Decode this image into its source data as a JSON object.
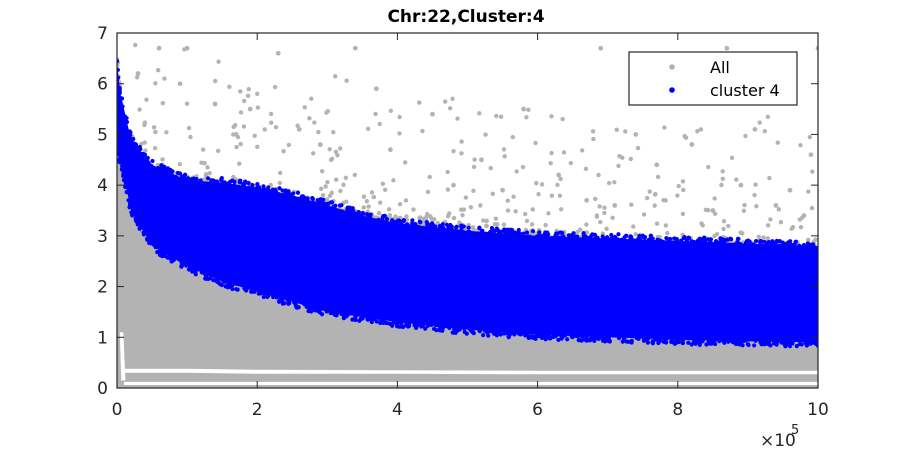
{
  "chart_data": {
    "type": "scatter",
    "title": "Chr:22,Cluster:4",
    "xlabel": "",
    "ylabel": "",
    "x_multiplier_label": "×10",
    "x_multiplier_exponent": "5",
    "xlim": [
      0,
      10
    ],
    "ylim": [
      0,
      7
    ],
    "xticks": [
      0,
      2,
      4,
      6,
      8,
      10
    ],
    "yticks": [
      0,
      1,
      2,
      3,
      4,
      5,
      6,
      7
    ],
    "grid": false,
    "legend_position": "top-right",
    "series": [
      {
        "name": "All",
        "color": "#b3b3b3",
        "description_band": {
          "x": [
            0,
            0.1,
            0.5,
            1,
            2,
            3,
            4,
            5,
            6,
            7,
            8,
            9,
            10
          ],
          "lower": [
            0.0,
            0.0,
            0.0,
            0.0,
            0.0,
            0.0,
            0.0,
            0.0,
            0.0,
            0.0,
            0.0,
            0.0,
            0.0
          ],
          "upper": [
            6.6,
            4.9,
            4.2,
            4.1,
            3.9,
            3.6,
            3.3,
            3.1,
            3.0,
            2.9,
            2.85,
            2.8,
            2.75
          ]
        },
        "outliers": [
          [
            0.6,
            6.7
          ],
          [
            1.0,
            6.7
          ],
          [
            2.3,
            6.6
          ],
          [
            3.4,
            6.7
          ],
          [
            6.9,
            6.7
          ],
          [
            8.7,
            6.7
          ],
          [
            10.0,
            6.7
          ],
          [
            0.3,
            6.2
          ],
          [
            0.9,
            6.0
          ],
          [
            1.4,
            5.6
          ],
          [
            1.9,
            5.5
          ],
          [
            2.6,
            5.1
          ],
          [
            3.7,
            5.9
          ],
          [
            4.5,
            5.4
          ],
          [
            5.8,
            5.5
          ],
          [
            7.4,
            5.0
          ],
          [
            8.2,
            4.8
          ],
          [
            9.1,
            5.1
          ],
          [
            9.9,
            4.6
          ],
          [
            3.9,
            4.7
          ],
          [
            5.2,
            4.5
          ],
          [
            6.3,
            4.2
          ],
          [
            7.7,
            4.4
          ],
          [
            8.9,
            4.0
          ],
          [
            9.6,
            3.9
          ],
          [
            4.8,
            4.0
          ],
          [
            6.7,
            3.7
          ],
          [
            9.4,
            3.6
          ],
          [
            2.9,
            4.8
          ],
          [
            1.7,
            5.0
          ],
          [
            5.5,
            3.9
          ],
          [
            7.1,
            3.6
          ],
          [
            8.5,
            3.5
          ],
          [
            9.8,
            3.4
          ]
        ]
      },
      {
        "name": "cluster 4",
        "color": "#0000ff",
        "description_band": {
          "x": [
            0,
            0.05,
            0.2,
            0.5,
            1,
            1.5,
            2,
            2.5,
            3,
            3.5,
            4,
            5,
            6,
            7,
            8,
            9,
            10
          ],
          "lower": [
            4.6,
            4.5,
            3.5,
            2.8,
            2.4,
            2.1,
            1.9,
            1.7,
            1.5,
            1.4,
            1.3,
            1.15,
            1.05,
            1.0,
            0.95,
            0.92,
            0.9
          ],
          "upper": [
            6.4,
            5.8,
            4.9,
            4.4,
            4.1,
            4.05,
            3.95,
            3.8,
            3.6,
            3.4,
            3.25,
            3.1,
            3.0,
            2.95,
            2.9,
            2.85,
            2.8
          ]
        }
      }
    ],
    "gray_gap_band": {
      "x": [
        0.1,
        1,
        2,
        4,
        6,
        8,
        10
      ],
      "low": [
        0.3,
        0.3,
        0.28,
        0.28,
        0.27,
        0.27,
        0.27
      ],
      "high": [
        0.38,
        0.38,
        0.36,
        0.35,
        0.34,
        0.34,
        0.34
      ]
    }
  }
}
